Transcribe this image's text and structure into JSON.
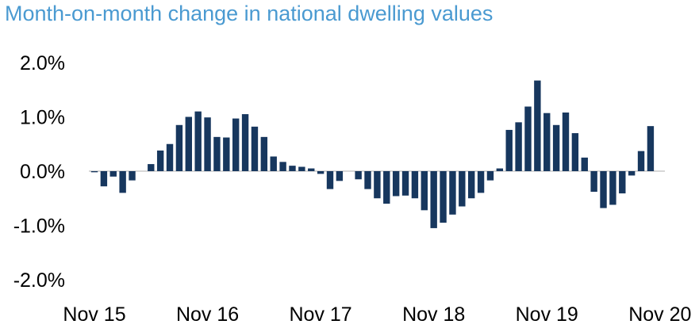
{
  "chart_data": {
    "type": "bar",
    "title": "Month-on-month change in national dwelling values",
    "xlabel": "",
    "ylabel": "",
    "ylim": [
      -2.0,
      2.0
    ],
    "y_ticks": [
      "2.0%",
      "1.0%",
      "0.0%",
      "-1.0%",
      "-2.0%"
    ],
    "y_tick_values": [
      2.0,
      1.0,
      0.0,
      -1.0,
      -2.0
    ],
    "x_tick_labels": [
      "Nov 15",
      "Nov 16",
      "Nov 17",
      "Nov 18",
      "Nov 19",
      "Nov 20"
    ],
    "x_tick_indices": [
      0,
      12,
      24,
      36,
      48,
      60
    ],
    "bar_color": "#17375e",
    "grid": false,
    "legend": "none",
    "categories": [
      "Nov 15",
      "Dec 15",
      "Jan 16",
      "Feb 16",
      "Mar 16",
      "Apr 16",
      "May 16",
      "Jun 16",
      "Jul 16",
      "Aug 16",
      "Sep 16",
      "Oct 16",
      "Nov 16",
      "Dec 16",
      "Jan 17",
      "Feb 17",
      "Mar 17",
      "Apr 17",
      "May 17",
      "Jun 17",
      "Jul 17",
      "Aug 17",
      "Sep 17",
      "Oct 17",
      "Nov 17",
      "Dec 17",
      "Jan 18",
      "Feb 18",
      "Mar 18",
      "Apr 18",
      "May 18",
      "Jun 18",
      "Jul 18",
      "Aug 18",
      "Sep 18",
      "Oct 18",
      "Nov 18",
      "Dec 18",
      "Jan 19",
      "Feb 19",
      "Mar 19",
      "Apr 19",
      "May 19",
      "Jun 19",
      "Jul 19",
      "Aug 19",
      "Sep 19",
      "Oct 19",
      "Nov 19",
      "Dec 19",
      "Jan 20",
      "Feb 20",
      "Mar 20",
      "Apr 20",
      "May 20",
      "Jun 20",
      "Jul 20",
      "Aug 20",
      "Sep 20",
      "Oct 20",
      "Nov 20"
    ],
    "values": [
      -0.02,
      -0.28,
      -0.1,
      -0.4,
      -0.17,
      0.0,
      0.13,
      0.38,
      0.5,
      0.85,
      1.0,
      1.1,
      0.99,
      0.63,
      0.62,
      0.97,
      1.05,
      0.82,
      0.63,
      0.27,
      0.17,
      0.1,
      0.08,
      0.05,
      -0.05,
      -0.33,
      -0.18,
      0.0,
      -0.15,
      -0.33,
      -0.5,
      -0.6,
      -0.46,
      -0.45,
      -0.5,
      -0.72,
      -1.05,
      -0.95,
      -0.8,
      -0.65,
      -0.5,
      -0.4,
      -0.17,
      0.05,
      0.76,
      0.9,
      1.19,
      1.67,
      1.07,
      0.85,
      1.08,
      0.7,
      0.25,
      -0.38,
      -0.68,
      -0.62,
      -0.41,
      -0.08,
      0.37,
      0.83,
      0.0
    ]
  }
}
